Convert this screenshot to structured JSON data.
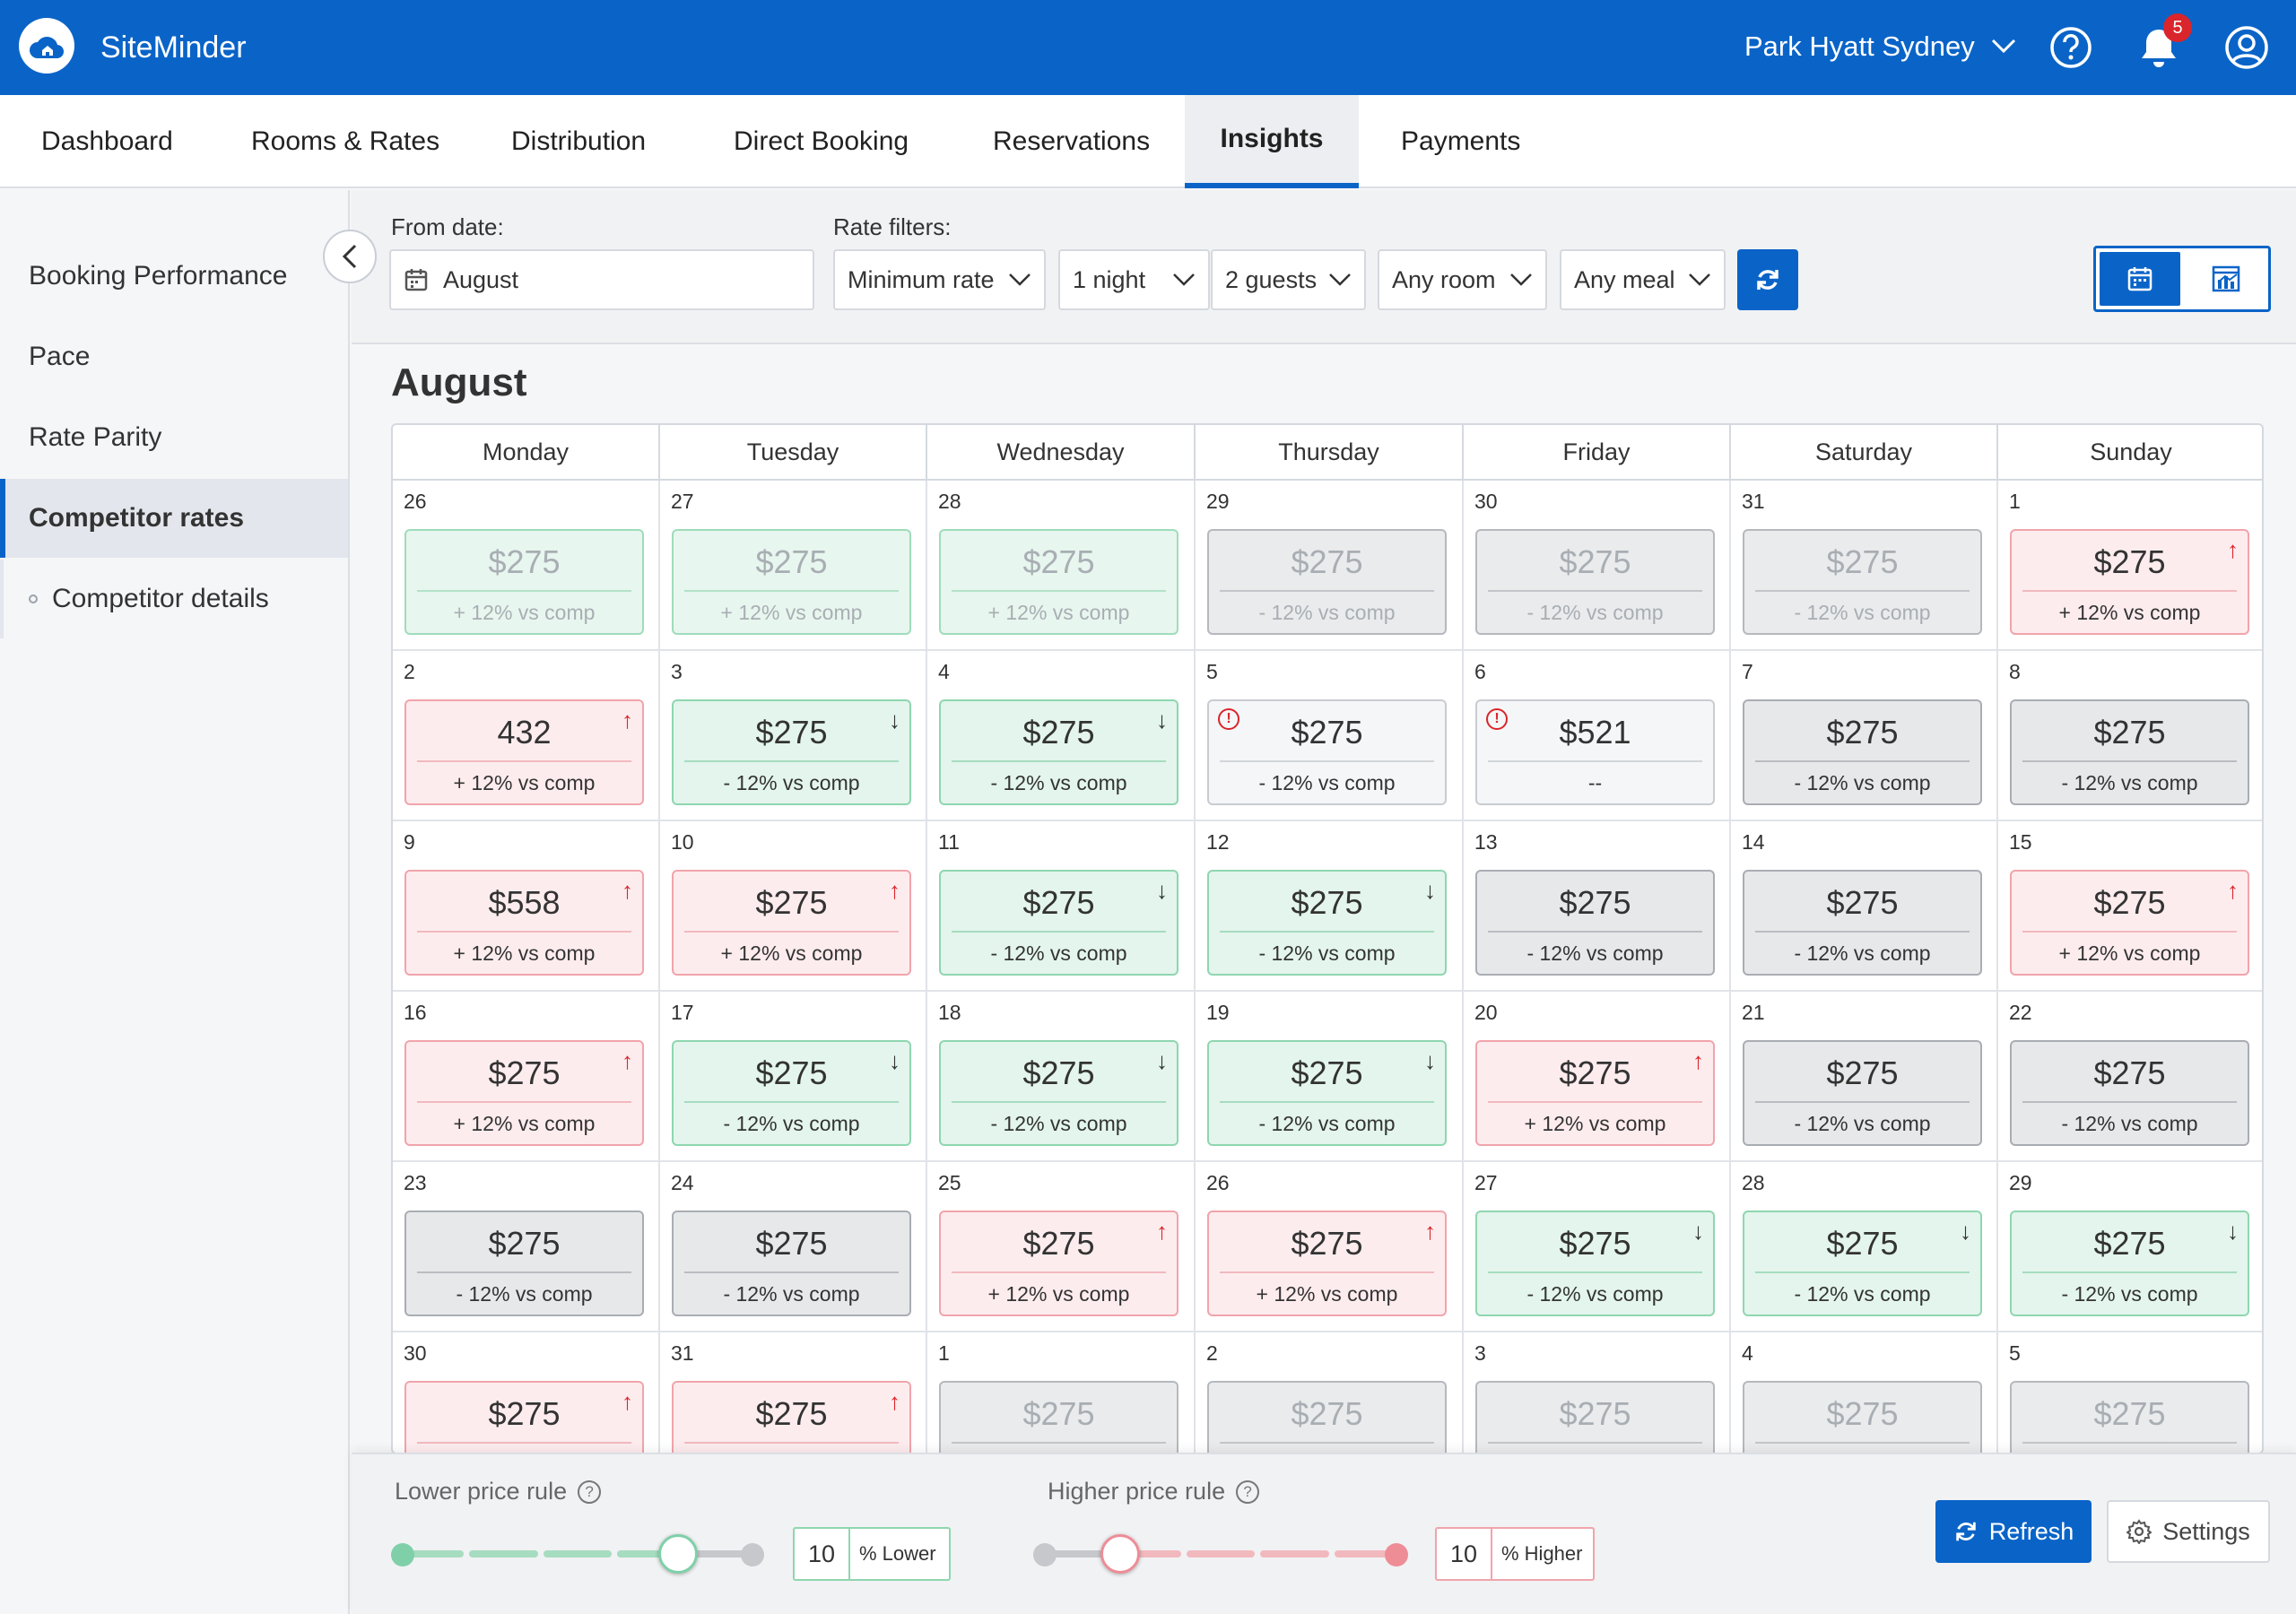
{
  "app": {
    "brand": "SiteMinder",
    "property": "Park Hyatt Sydney",
    "notifications": "5"
  },
  "nav": [
    {
      "label": "Dashboard"
    },
    {
      "label": "Rooms & Rates"
    },
    {
      "label": "Distribution"
    },
    {
      "label": "Direct Booking"
    },
    {
      "label": "Reservations"
    },
    {
      "label": "Insights",
      "active": true
    },
    {
      "label": "Payments"
    }
  ],
  "sidebar": [
    {
      "label": "Booking Performance"
    },
    {
      "label": "Pace"
    },
    {
      "label": "Rate Parity"
    },
    {
      "label": "Competitor rates",
      "active": true
    },
    {
      "label": "Competitor details",
      "sub": true
    }
  ],
  "filters": {
    "from_label": "From date:",
    "from_value": "August",
    "rate_label": "Rate filters:",
    "rate_type": "Minimum rate",
    "nights": "1 night",
    "guests": "2 guests",
    "room": "Any room",
    "meal": "Any meal"
  },
  "calendar": {
    "month": "August",
    "days": [
      "Monday",
      "Tuesday",
      "Wednesday",
      "Thursday",
      "Friday",
      "Saturday",
      "Sunday"
    ],
    "weeks": [
      [
        {
          "day": "26",
          "price": "$275",
          "cmp": "+ 12% vs comp",
          "tone": "green",
          "faded": true
        },
        {
          "day": "27",
          "price": "$275",
          "cmp": "+ 12% vs comp",
          "tone": "green",
          "faded": true
        },
        {
          "day": "28",
          "price": "$275",
          "cmp": "+ 12% vs comp",
          "tone": "green",
          "faded": true
        },
        {
          "day": "29",
          "price": "$275",
          "cmp": "- 12% vs comp",
          "tone": "gray",
          "faded": true
        },
        {
          "day": "30",
          "price": "$275",
          "cmp": "- 12% vs comp",
          "tone": "gray",
          "faded": true
        },
        {
          "day": "31",
          "price": "$275",
          "cmp": "- 12% vs comp",
          "tone": "gray",
          "faded": true
        },
        {
          "day": "1",
          "price": "$275",
          "cmp": "+ 12% vs comp",
          "tone": "red",
          "arrow": "up"
        }
      ],
      [
        {
          "day": "2",
          "price": "432",
          "cmp": "+ 12% vs comp",
          "tone": "red",
          "arrow": "up"
        },
        {
          "day": "3",
          "price": "$275",
          "cmp": "- 12% vs comp",
          "tone": "green",
          "arrow": "down"
        },
        {
          "day": "4",
          "price": "$275",
          "cmp": "- 12% vs comp",
          "tone": "green",
          "arrow": "down"
        },
        {
          "day": "5",
          "price": "$275",
          "cmp": "- 12% vs comp",
          "tone": "white",
          "alert": true
        },
        {
          "day": "6",
          "price": "$521",
          "cmp": "--",
          "tone": "white",
          "alert": true
        },
        {
          "day": "7",
          "price": "$275",
          "cmp": "- 12% vs comp",
          "tone": "gray"
        },
        {
          "day": "8",
          "price": "$275",
          "cmp": "- 12% vs comp",
          "tone": "gray"
        }
      ],
      [
        {
          "day": "9",
          "price": "$558",
          "cmp": "+ 12% vs comp",
          "tone": "red",
          "arrow": "up"
        },
        {
          "day": "10",
          "price": "$275",
          "cmp": "+ 12% vs comp",
          "tone": "red",
          "arrow": "up"
        },
        {
          "day": "11",
          "price": "$275",
          "cmp": "- 12% vs comp",
          "tone": "green",
          "arrow": "down"
        },
        {
          "day": "12",
          "price": "$275",
          "cmp": "- 12% vs comp",
          "tone": "green",
          "arrow": "down"
        },
        {
          "day": "13",
          "price": "$275",
          "cmp": "- 12% vs comp",
          "tone": "gray"
        },
        {
          "day": "14",
          "price": "$275",
          "cmp": "- 12% vs comp",
          "tone": "gray"
        },
        {
          "day": "15",
          "price": "$275",
          "cmp": "+ 12% vs comp",
          "tone": "red",
          "arrow": "up"
        }
      ],
      [
        {
          "day": "16",
          "price": "$275",
          "cmp": "+ 12% vs comp",
          "tone": "red",
          "arrow": "up"
        },
        {
          "day": "17",
          "price": "$275",
          "cmp": "- 12% vs comp",
          "tone": "green",
          "arrow": "down"
        },
        {
          "day": "18",
          "price": "$275",
          "cmp": "- 12% vs comp",
          "tone": "green",
          "arrow": "down"
        },
        {
          "day": "19",
          "price": "$275",
          "cmp": "- 12% vs comp",
          "tone": "green",
          "arrow": "down"
        },
        {
          "day": "20",
          "price": "$275",
          "cmp": "+ 12% vs comp",
          "tone": "red",
          "arrow": "up"
        },
        {
          "day": "21",
          "price": "$275",
          "cmp": "- 12% vs comp",
          "tone": "gray"
        },
        {
          "day": "22",
          "price": "$275",
          "cmp": "- 12% vs comp",
          "tone": "gray"
        }
      ],
      [
        {
          "day": "23",
          "price": "$275",
          "cmp": "- 12% vs comp",
          "tone": "gray"
        },
        {
          "day": "24",
          "price": "$275",
          "cmp": "- 12% vs comp",
          "tone": "gray"
        },
        {
          "day": "25",
          "price": "$275",
          "cmp": "+ 12% vs comp",
          "tone": "red",
          "arrow": "up"
        },
        {
          "day": "26",
          "price": "$275",
          "cmp": "+ 12% vs comp",
          "tone": "red",
          "arrow": "up"
        },
        {
          "day": "27",
          "price": "$275",
          "cmp": "- 12% vs comp",
          "tone": "green",
          "arrow": "down"
        },
        {
          "day": "28",
          "price": "$275",
          "cmp": "- 12% vs comp",
          "tone": "green",
          "arrow": "down"
        },
        {
          "day": "29",
          "price": "$275",
          "cmp": "- 12% vs comp",
          "tone": "green",
          "arrow": "down"
        }
      ],
      [
        {
          "day": "30",
          "price": "$275",
          "cmp": "",
          "tone": "red",
          "arrow": "up"
        },
        {
          "day": "31",
          "price": "$275",
          "cmp": "",
          "tone": "red",
          "arrow": "up"
        },
        {
          "day": "1",
          "price": "$275",
          "cmp": "",
          "tone": "gray",
          "faded": true
        },
        {
          "day": "2",
          "price": "$275",
          "cmp": "",
          "tone": "gray",
          "faded": true
        },
        {
          "day": "3",
          "price": "$275",
          "cmp": "",
          "tone": "gray",
          "faded": true
        },
        {
          "day": "4",
          "price": "$275",
          "cmp": "",
          "tone": "gray",
          "faded": true
        },
        {
          "day": "5",
          "price": "$275",
          "cmp": "",
          "tone": "gray",
          "faded": true
        }
      ]
    ]
  },
  "rules": {
    "lower_label": "Lower price rule",
    "lower_value": "10",
    "lower_unit": "% Lower",
    "lower_level": 0.8,
    "higher_label": "Higher price rule",
    "higher_value": "10",
    "higher_unit": "% Higher",
    "higher_level": 0.2,
    "refresh": "Refresh",
    "settings": "Settings"
  },
  "colors": {
    "brand": "#0a64c8",
    "up": "#d9252b",
    "green_fill": "#e3f5ec",
    "red_fill": "#fdecee"
  },
  "icons": [
    "cloud-home-icon",
    "chevron-down-icon",
    "help-icon",
    "bell-icon",
    "user-icon",
    "chevron-left-icon",
    "calendar-icon",
    "refresh-icon",
    "calendar-view-icon",
    "chart-view-icon",
    "question-icon",
    "settings-icon",
    "arrow-up-icon",
    "arrow-down-icon",
    "alert-icon"
  ]
}
